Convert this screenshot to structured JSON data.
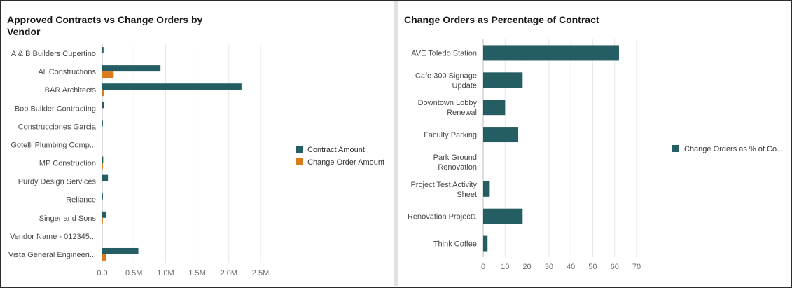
{
  "colors": {
    "contract": "#245e63",
    "change": "#d97a1b",
    "grid": "#e6e6e6",
    "axis": "#bdbdbd"
  },
  "chart_data": [
    {
      "type": "bar",
      "orientation": "horizontal",
      "title": "Approved Contracts vs Change Orders by Vendor",
      "categories": [
        "A & B Builders Cupertino",
        "Ali Constructions",
        "BAR Architects",
        "Bob Builder Contracting",
        "Construcciones Garcia",
        "Gotelli Plumbing Comp...",
        "MP Construction",
        "Purdy Design Services",
        "Reliance",
        "Singer and Sons",
        "Vendor Name - 012345...",
        "Vista General Engineeri..."
      ],
      "series": [
        {
          "name": "Contract Amount",
          "values": [
            20000,
            920000,
            2200000,
            25000,
            10000,
            0,
            15000,
            90000,
            10000,
            65000,
            0,
            570000
          ]
        },
        {
          "name": "Change Order Amount",
          "values": [
            0,
            180000,
            30000,
            0,
            0,
            0,
            10000,
            0,
            0,
            10000,
            0,
            60000
          ]
        }
      ],
      "xticks": [
        "0.0",
        "0.5M",
        "1.0M",
        "1.5M",
        "2.0M",
        "2.5M"
      ],
      "xlim": [
        0,
        2500000
      ],
      "grid": true,
      "legend": "right"
    },
    {
      "type": "bar",
      "orientation": "horizontal",
      "title": "Change Orders as Percentage of Contract",
      "categories": [
        [
          "AVE Toledo Station"
        ],
        [
          "Cafe 300 Signage",
          "Update"
        ],
        [
          "Downtown Lobby",
          "Renewal"
        ],
        [
          "Faculty Parking"
        ],
        [
          "Park Ground",
          "Renovation"
        ],
        [
          "Project Test Activity",
          "Sheet"
        ],
        [
          "Renovation Project1"
        ],
        [
          "Think Coffee"
        ]
      ],
      "series": [
        {
          "name": "Change Orders as % of Co...",
          "values": [
            62,
            18,
            10,
            16,
            0,
            3,
            18,
            2
          ]
        }
      ],
      "xticks": [
        "0",
        "10",
        "20",
        "30",
        "40",
        "50",
        "60",
        "70"
      ],
      "xlim": [
        0,
        70
      ],
      "grid": true,
      "legend": "right"
    }
  ]
}
